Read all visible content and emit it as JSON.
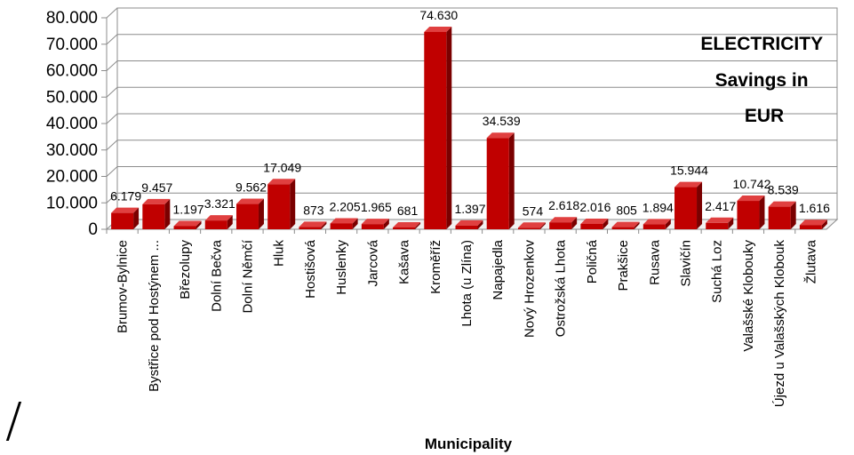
{
  "chart_data": {
    "type": "bar",
    "title": [
      "ELECTRICITY",
      "Savings in",
      "EUR"
    ],
    "xlabel": "Municipality",
    "ylabel": "",
    "ylim": [
      0,
      80000
    ],
    "yticks": [
      0,
      10000,
      20000,
      30000,
      40000,
      50000,
      60000,
      70000,
      80000
    ],
    "ytick_labels": [
      "0",
      "10.000",
      "20.000",
      "30.000",
      "40.000",
      "50.000",
      "60.000",
      "70.000",
      "80.000"
    ],
    "grid": true,
    "bar_color": "#c00000",
    "categories": [
      "Brumov-Bylnice",
      "Bystřice pod Hostýnem ...",
      "Březolupy",
      "Dolní Bečva",
      "Dolní Němčí",
      "Hluk",
      "Hostišová",
      "Huslenky",
      "Jarcová",
      "Kašava",
      "Kroměříž",
      "Lhota (u Zlína)",
      "Napajedla",
      "Nový Hrozenkov",
      "Ostrožská Lhota",
      "Poličná",
      "Prakšice",
      "Rusava",
      "Slavičín",
      "Suchá Loz",
      "Valašské Klobouky",
      "Újezd u Valašských Klobouk",
      "Žlutava"
    ],
    "values": [
      6179,
      9457,
      1197,
      3321,
      9562,
      17049,
      873,
      2205,
      1965,
      681,
      74630,
      1397,
      34539,
      574,
      2618,
      2016,
      805,
      1894,
      15944,
      2417,
      10742,
      8539,
      1616
    ],
    "value_labels": [
      "6.179",
      "9.457",
      "1.197",
      "3.321",
      "9.562",
      "17.049",
      "873",
      "2.205",
      "1.965",
      "681",
      "74.630",
      "1.397",
      "34.539",
      "574",
      "2.618",
      "2.016",
      "805",
      "1.894",
      "15.944",
      "2.417",
      "10.742",
      "8.539",
      "1.616"
    ]
  }
}
